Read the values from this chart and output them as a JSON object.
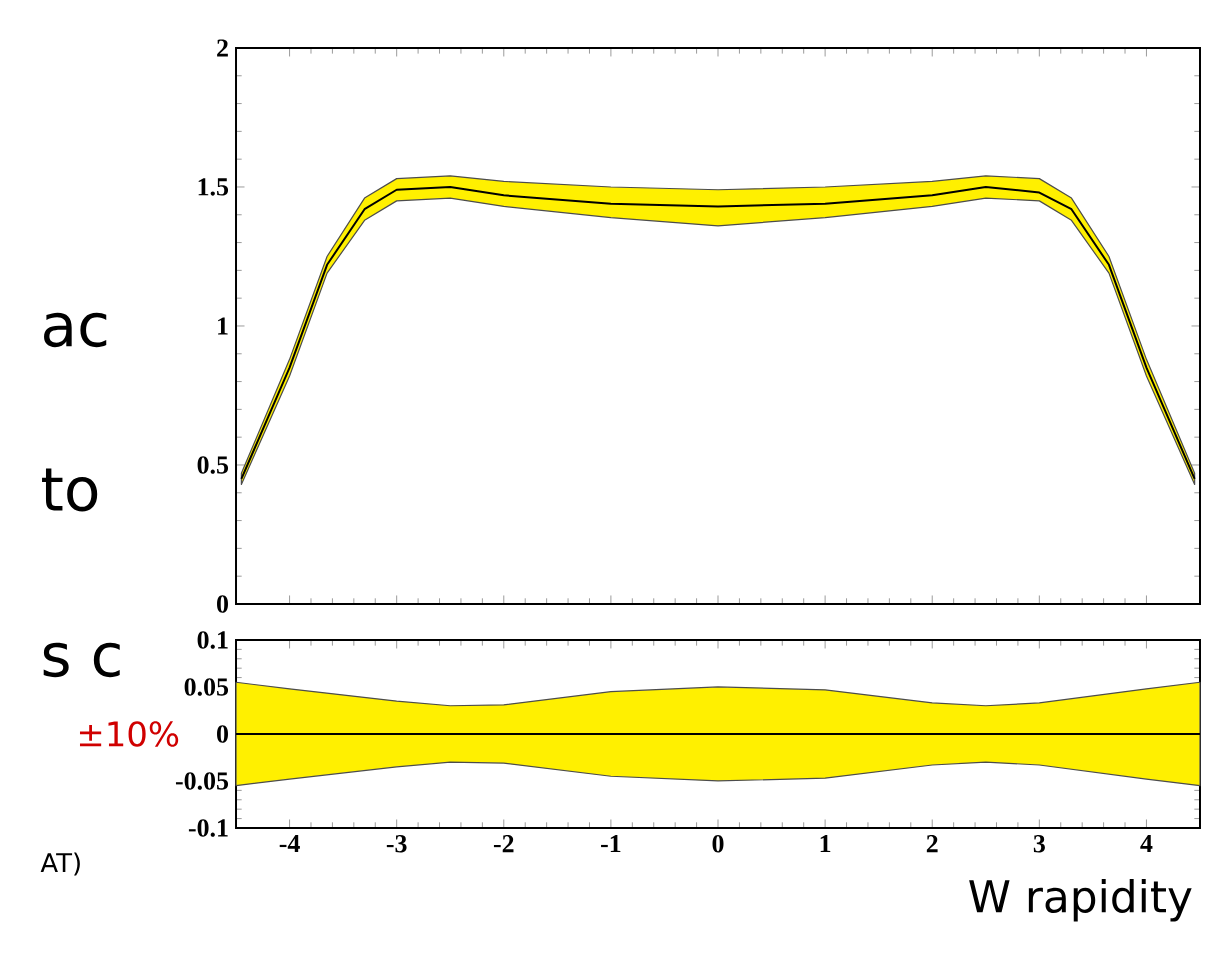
{
  "chart_data": [
    {
      "type": "line",
      "tick_labels": "y",
      "grid": false,
      "xlim": [
        -4.5,
        4.5
      ],
      "ylim": [
        0,
        2
      ],
      "xticks": [
        -4,
        -3,
        -2,
        -1,
        0,
        1,
        2,
        3,
        4
      ],
      "yticks": [
        0,
        0.5,
        1,
        1.5,
        2
      ],
      "x": [
        -4.45,
        -4,
        -3.65,
        -3.3,
        -3,
        -2.5,
        -2,
        -1,
        0,
        1,
        2,
        2.5,
        3,
        3.3,
        3.65,
        4,
        4.45
      ],
      "series": [
        {
          "color": "#000000",
          "values": [
            0.45,
            0.85,
            1.22,
            1.42,
            1.49,
            1.5,
            1.47,
            1.44,
            1.43,
            1.44,
            1.47,
            1.5,
            1.48,
            1.42,
            1.22,
            0.85,
            0.45
          ],
          "lower": [
            0.43,
            0.82,
            1.19,
            1.38,
            1.45,
            1.46,
            1.43,
            1.39,
            1.36,
            1.39,
            1.43,
            1.46,
            1.45,
            1.38,
            1.19,
            0.82,
            0.43
          ],
          "upper": [
            0.47,
            0.88,
            1.25,
            1.46,
            1.53,
            1.54,
            1.52,
            1.5,
            1.49,
            1.5,
            1.52,
            1.54,
            1.53,
            1.46,
            1.25,
            0.88,
            0.47
          ]
        }
      ],
      "annotations": [
        "ac",
        "to"
      ]
    },
    {
      "type": "line",
      "xlabel": "W rapidity",
      "grid": false,
      "xlim": [
        -4.5,
        4.5
      ],
      "ylim": [
        -0.1,
        0.1
      ],
      "xticks": [
        -4,
        -3,
        -2,
        -1,
        0,
        1,
        2,
        3,
        4
      ],
      "yticks": [
        -0.1,
        -0.05,
        0,
        0.05,
        0.1
      ],
      "x": [
        -4.5,
        -4,
        -3,
        -2.5,
        -2,
        -1,
        0,
        1,
        2,
        2.5,
        3,
        4,
        4.5
      ],
      "series": [
        {
          "color": "#000000",
          "values": [
            0,
            0,
            0,
            0,
            0,
            0,
            0,
            0,
            0,
            0,
            0,
            0,
            0
          ],
          "lower": [
            -0.055,
            -0.048,
            -0.035,
            -0.03,
            -0.031,
            -0.045,
            -0.05,
            -0.047,
            -0.033,
            -0.03,
            -0.033,
            -0.048,
            -0.055
          ],
          "upper": [
            0.055,
            0.048,
            0.035,
            0.03,
            0.031,
            0.045,
            0.05,
            0.047,
            0.033,
            0.03,
            0.033,
            0.048,
            0.055
          ]
        }
      ],
      "annotations": [
        "s c",
        "±10%",
        "AT)"
      ]
    }
  ]
}
